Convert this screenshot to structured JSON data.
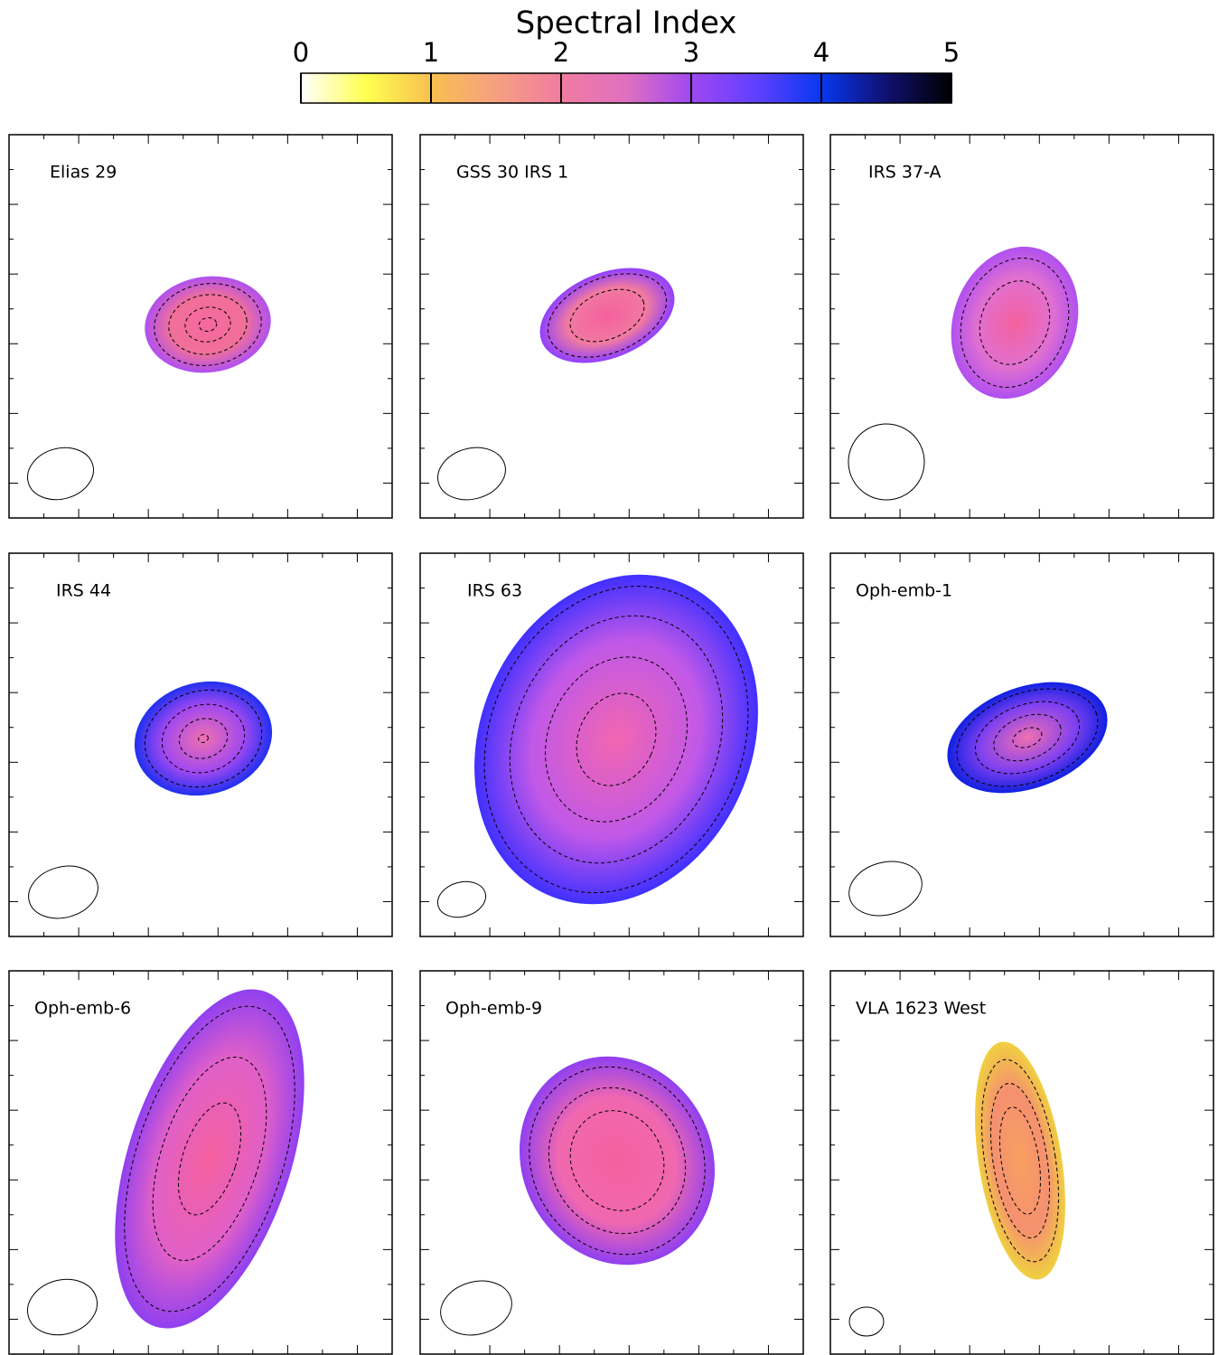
{
  "chart_data": {
    "type": "colorbar",
    "title": "Spectral Index",
    "xlim": [
      0,
      5
    ],
    "xticks": [
      0,
      1,
      2,
      3,
      4,
      5
    ],
    "colors": [
      "#ffffff",
      "#ffff50",
      "#f8c050",
      "#f5a080",
      "#f07ca0",
      "#e070c0",
      "#a048f0",
      "#6040ff",
      "#0838f0",
      "#101070",
      "#000000"
    ]
  },
  "panels": [
    {
      "label": "Elias 29"
    },
    {
      "label": "GSS 30 IRS 1"
    },
    {
      "label": "IRS 37-A"
    },
    {
      "label": "IRS 44"
    },
    {
      "label": "IRS 63"
    },
    {
      "label": "Oph-emb-1"
    },
    {
      "label": "Oph-emb-6"
    },
    {
      "label": "Oph-emb-9"
    },
    {
      "label": "VLA 1623 West"
    }
  ]
}
